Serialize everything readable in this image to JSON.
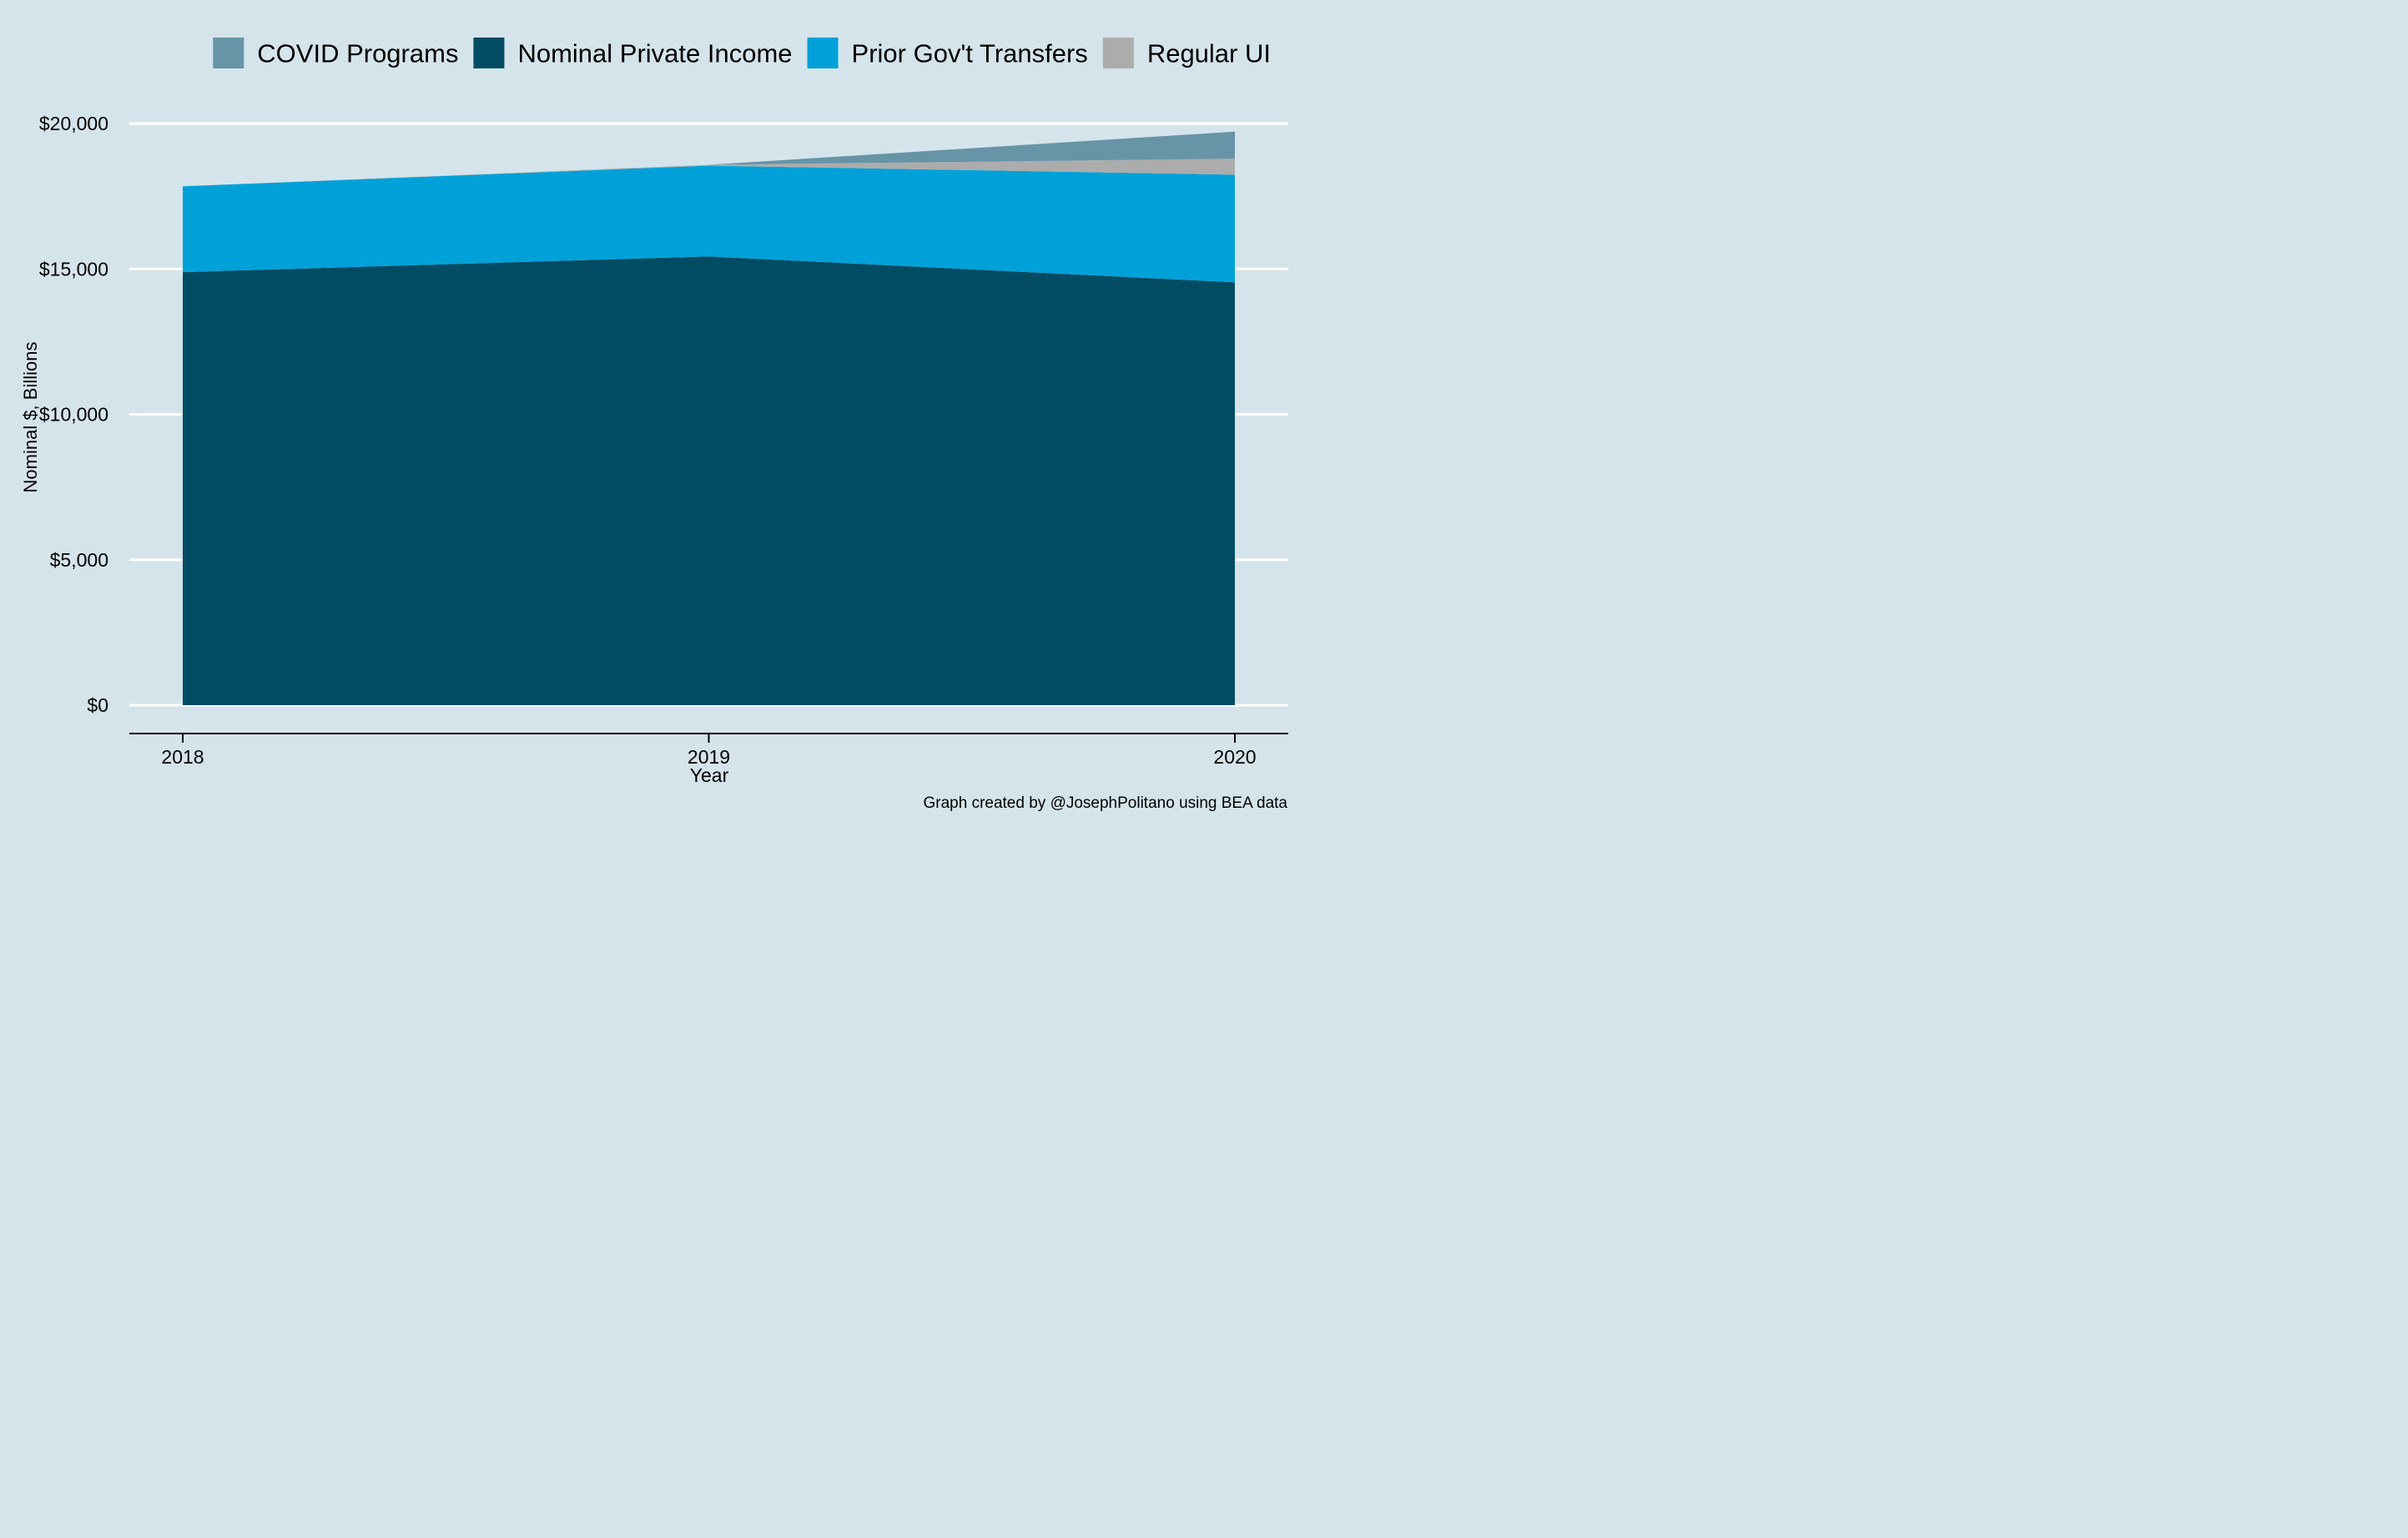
{
  "chart_data": {
    "type": "area",
    "stacked": true,
    "title": "",
    "xlabel": "Year",
    "ylabel": "Nominal $, Billions",
    "x": [
      "2018",
      "2019",
      "2020"
    ],
    "ylim": [
      0,
      20000
    ],
    "yticks": [
      0,
      5000,
      10000,
      15000,
      20000
    ],
    "ytick_labels": [
      "$0",
      "$5,000",
      "$10,000",
      "$15,000",
      "$20,000"
    ],
    "xtick_labels": [
      "2018",
      "2019",
      "2020"
    ],
    "grid": "horizontal",
    "legend_position": "top",
    "series": [
      {
        "name": "Nominal Private Income",
        "values": [
          14890,
          15430,
          14540
        ],
        "color": "#024c63"
      },
      {
        "name": "Prior Gov't Transfers",
        "values": [
          2950,
          3120,
          3700
        ],
        "color": "#00a1d9"
      },
      {
        "name": "Regular UI",
        "values": [
          0,
          30,
          550
        ],
        "color": "#acacac"
      },
      {
        "name": "COVID Programs",
        "values": [
          0,
          0,
          930
        ],
        "color": "#6794a7"
      }
    ],
    "legend_order": [
      "COVID Programs",
      "Nominal Private Income",
      "Prior Gov't Transfers",
      "Regular UI"
    ],
    "caption": "Graph created by @JosephPolitano using BEA data"
  },
  "colors": {
    "background": "#d5e4eb",
    "gridline": "#ffffff",
    "axis": "#000000"
  }
}
